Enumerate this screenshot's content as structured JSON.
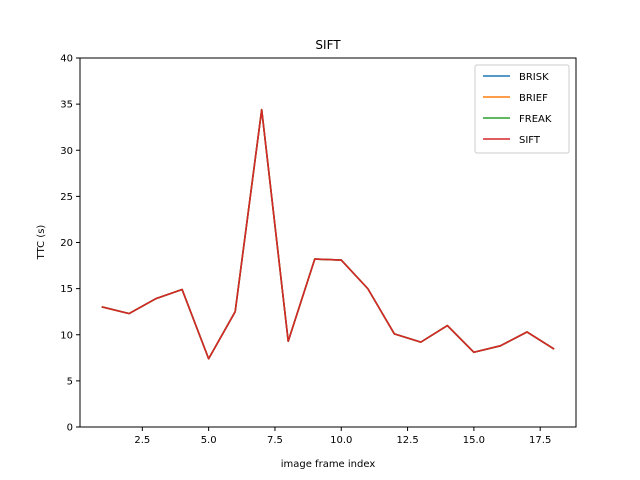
{
  "chart_data": {
    "type": "line",
    "title": "SIFT",
    "xlabel": "image frame index",
    "ylabel": "TTC (s)",
    "xlim": [
      0.15,
      18.85
    ],
    "ylim": [
      0,
      40
    ],
    "x_ticks": [
      2.5,
      5.0,
      7.5,
      10.0,
      12.5,
      15.0,
      17.5
    ],
    "x_tick_labels": [
      "2.5",
      "5.0",
      "7.5",
      "10.0",
      "12.5",
      "15.0",
      "17.5"
    ],
    "y_ticks": [
      0,
      5,
      10,
      15,
      20,
      25,
      30,
      35,
      40
    ],
    "y_tick_labels": [
      "0",
      "5",
      "10",
      "15",
      "20",
      "25",
      "30",
      "35",
      "40"
    ],
    "grid": false,
    "legend_position": "top-right",
    "x": [
      1,
      2,
      3,
      4,
      5,
      6,
      7,
      8,
      9,
      10,
      11,
      12,
      13,
      14,
      15,
      16,
      17,
      18
    ],
    "series": [
      {
        "name": "BRISK",
        "color": "#1f77b4",
        "values": [
          13.0,
          12.3,
          13.9,
          14.9,
          7.4,
          12.5,
          34.4,
          9.3,
          18.2,
          18.1,
          15.0,
          10.1,
          9.2,
          11.0,
          8.1,
          8.8,
          10.3,
          8.5
        ]
      },
      {
        "name": "BRIEF",
        "color": "#ff7f0e",
        "values": [
          13.0,
          12.3,
          13.9,
          14.9,
          7.4,
          12.5,
          34.4,
          9.3,
          18.2,
          18.1,
          15.0,
          10.1,
          9.2,
          11.0,
          8.1,
          8.8,
          10.3,
          8.5
        ]
      },
      {
        "name": "FREAK",
        "color": "#2ca02c",
        "values": [
          13.0,
          12.3,
          13.9,
          14.9,
          7.4,
          12.5,
          34.4,
          9.3,
          18.2,
          18.1,
          15.0,
          10.1,
          9.2,
          11.0,
          8.1,
          8.8,
          10.3,
          8.5
        ]
      },
      {
        "name": "SIFT",
        "color": "#d62728",
        "values": [
          13.0,
          12.3,
          13.9,
          14.9,
          7.4,
          12.5,
          34.4,
          9.3,
          18.2,
          18.1,
          15.0,
          10.1,
          9.2,
          11.0,
          8.1,
          8.8,
          10.3,
          8.5
        ]
      }
    ]
  }
}
